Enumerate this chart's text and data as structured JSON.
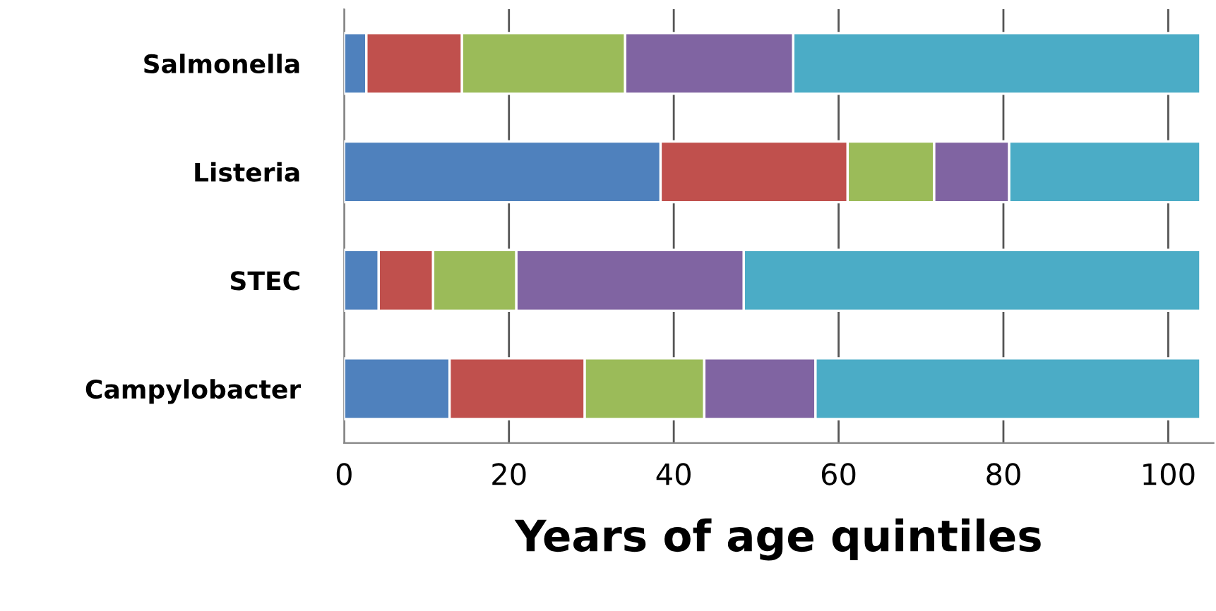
{
  "chart_data": {
    "type": "bar",
    "orientation": "horizontal",
    "stacked": true,
    "xlabel": "Years of age quintiles",
    "categories": [
      "Salmonella",
      "Listeria",
      "STEC",
      "Campylobacter"
    ],
    "series": [
      {
        "color": "#4f81bd",
        "values": [
          2.7,
          38.4,
          4.2,
          12.8
        ]
      },
      {
        "color": "#c0504d",
        "values": [
          11.6,
          22.7,
          6.6,
          16.4
        ]
      },
      {
        "color": "#9bbb59",
        "values": [
          19.8,
          10.5,
          10.1,
          14.5
        ]
      },
      {
        "color": "#8064a2",
        "values": [
          20.4,
          9.1,
          27.6,
          13.5
        ]
      },
      {
        "color": "#4bacc6",
        "values": [
          49.4,
          23.2,
          55.4,
          46.7
        ]
      }
    ],
    "xlim": [
      0,
      105.5
    ],
    "xticks": [
      0,
      20,
      40,
      60,
      80,
      100
    ],
    "grid": "x",
    "legend": false
  }
}
